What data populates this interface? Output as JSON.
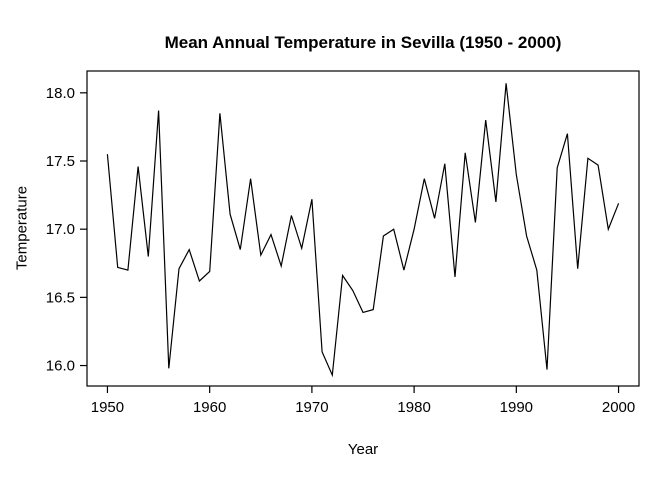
{
  "chart_data": {
    "type": "line",
    "title": "Mean Annual Temperature in Sevilla (1950 - 2000)",
    "xlabel": "Year",
    "ylabel": "Temperature",
    "x_ticks": [
      1950,
      1960,
      1970,
      1980,
      1990,
      2000
    ],
    "y_ticks": [
      16.0,
      16.5,
      17.0,
      17.5,
      18.0
    ],
    "xlim": [
      1948,
      2002
    ],
    "ylim": [
      15.85,
      18.16
    ],
    "grid": false,
    "legend": "none",
    "line_color": "#000000",
    "background_color": "#ffffff",
    "x": [
      1950,
      1951,
      1952,
      1953,
      1954,
      1955,
      1956,
      1957,
      1958,
      1959,
      1960,
      1961,
      1962,
      1963,
      1964,
      1965,
      1966,
      1967,
      1968,
      1969,
      1970,
      1971,
      1972,
      1973,
      1974,
      1975,
      1976,
      1977,
      1978,
      1979,
      1980,
      1981,
      1982,
      1983,
      1984,
      1985,
      1986,
      1987,
      1988,
      1989,
      1990,
      1991,
      1992,
      1993,
      1994,
      1995,
      1996,
      1997,
      1998,
      1999,
      2000
    ],
    "y": [
      17.55,
      16.72,
      16.7,
      17.46,
      16.8,
      17.87,
      15.98,
      16.71,
      16.85,
      16.62,
      16.69,
      17.85,
      17.11,
      16.85,
      17.37,
      16.81,
      16.96,
      16.73,
      17.1,
      16.86,
      17.22,
      16.1,
      15.93,
      16.66,
      16.55,
      16.39,
      16.41,
      16.95,
      17.0,
      16.7,
      17.0,
      17.37,
      17.08,
      17.48,
      16.65,
      17.56,
      17.05,
      17.8,
      17.2,
      18.07,
      17.4,
      16.95,
      16.7,
      15.97,
      17.45,
      17.7,
      16.71,
      17.52,
      17.47,
      17.0,
      17.19
    ]
  }
}
